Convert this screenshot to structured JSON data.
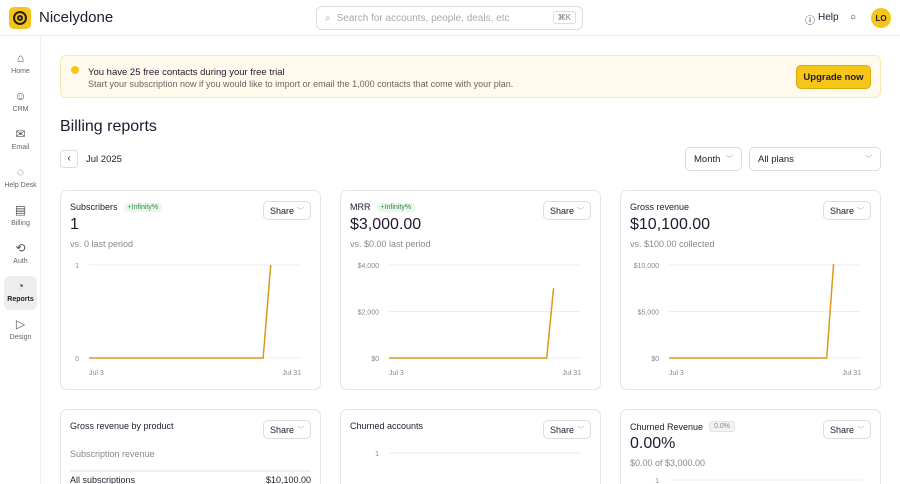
{
  "app": {
    "name": "Nicelydone",
    "search_placeholder": "Search for accounts, people, deals, etc",
    "search_shortcut": "⌘K",
    "help": "Help",
    "avatar": "LO"
  },
  "sidebar": {
    "items": [
      {
        "label": "Home",
        "icon": "home-icon"
      },
      {
        "label": "CRM",
        "icon": "user-circle-icon"
      },
      {
        "label": "Email",
        "icon": "mail-icon"
      },
      {
        "label": "Help Desk",
        "icon": "chat-icon"
      },
      {
        "label": "Billing",
        "icon": "billing-icon"
      },
      {
        "label": "Auth",
        "icon": "auth-icon"
      },
      {
        "label": "Reports",
        "icon": "chart-icon",
        "active": true
      },
      {
        "label": "Design",
        "icon": "cursor-icon"
      }
    ]
  },
  "banner": {
    "title": "You have 25 free contacts during your free trial",
    "text": "Start your subscription now if you would like to import or email the 1,000 contacts that come with your plan.",
    "button": "Upgrade now"
  },
  "page": {
    "title": "Billing reports",
    "period": "Jul 2025",
    "granularity": "Month",
    "plans": "All plans"
  },
  "share_label": "Share",
  "cards": [
    {
      "title": "Subscribers",
      "badge": "+Infinity%",
      "value": "1",
      "sub": "vs. 0 last period"
    },
    {
      "title": "MRR",
      "badge": "+Infinity%",
      "value": "$3,000.00",
      "sub": "vs. $0.00 last period"
    },
    {
      "title": "Gross revenue",
      "value": "$10,100.00",
      "sub": "vs. $100.00 collected"
    },
    {
      "title": "Gross revenue by product",
      "sub": "Subscription revenue",
      "row_label": "All subscriptions",
      "row_value": "$10,100.00"
    },
    {
      "title": "Churned accounts"
    },
    {
      "title": "Churned Revenue",
      "badge": "0.0%",
      "value": "0.00%",
      "sub": "$0.00 of $3,000.00"
    }
  ],
  "accent": "#f5c518",
  "line_color": "#d99a1a",
  "chart_data": [
    {
      "type": "line",
      "x": [
        "Jul 3",
        "Jul 26",
        "Jul 27"
      ],
      "y": [
        0,
        0,
        1
      ],
      "yticks": [
        "1",
        "0"
      ],
      "ylim": [
        0,
        1
      ],
      "xticks": [
        "Jul 3",
        "Jul 31"
      ],
      "grid": true
    },
    {
      "type": "line",
      "x": [
        "Jul 3",
        "Jul 26",
        "Jul 27"
      ],
      "y": [
        0,
        0,
        3000
      ],
      "yticks": [
        "$4,000",
        "$2,000",
        "$0"
      ],
      "ylim": [
        0,
        4000
      ],
      "xticks": [
        "Jul 3",
        "Jul 31"
      ],
      "grid": true
    },
    {
      "type": "line",
      "x": [
        "Jul 3",
        "Jul 26",
        "Jul 27"
      ],
      "y": [
        0,
        0,
        10100
      ],
      "yticks": [
        "$10,000",
        "$5,000",
        "$0"
      ],
      "ylim": [
        0,
        10000
      ],
      "xticks": [
        "Jul 3",
        "Jul 31"
      ],
      "grid": true
    },
    {
      "type": "line",
      "yticks": [
        "1"
      ],
      "ylim": [
        0,
        1
      ],
      "grid": true
    },
    {
      "type": "line",
      "yticks": [
        "1"
      ],
      "ylim": [
        0,
        1
      ],
      "grid": true
    }
  ]
}
